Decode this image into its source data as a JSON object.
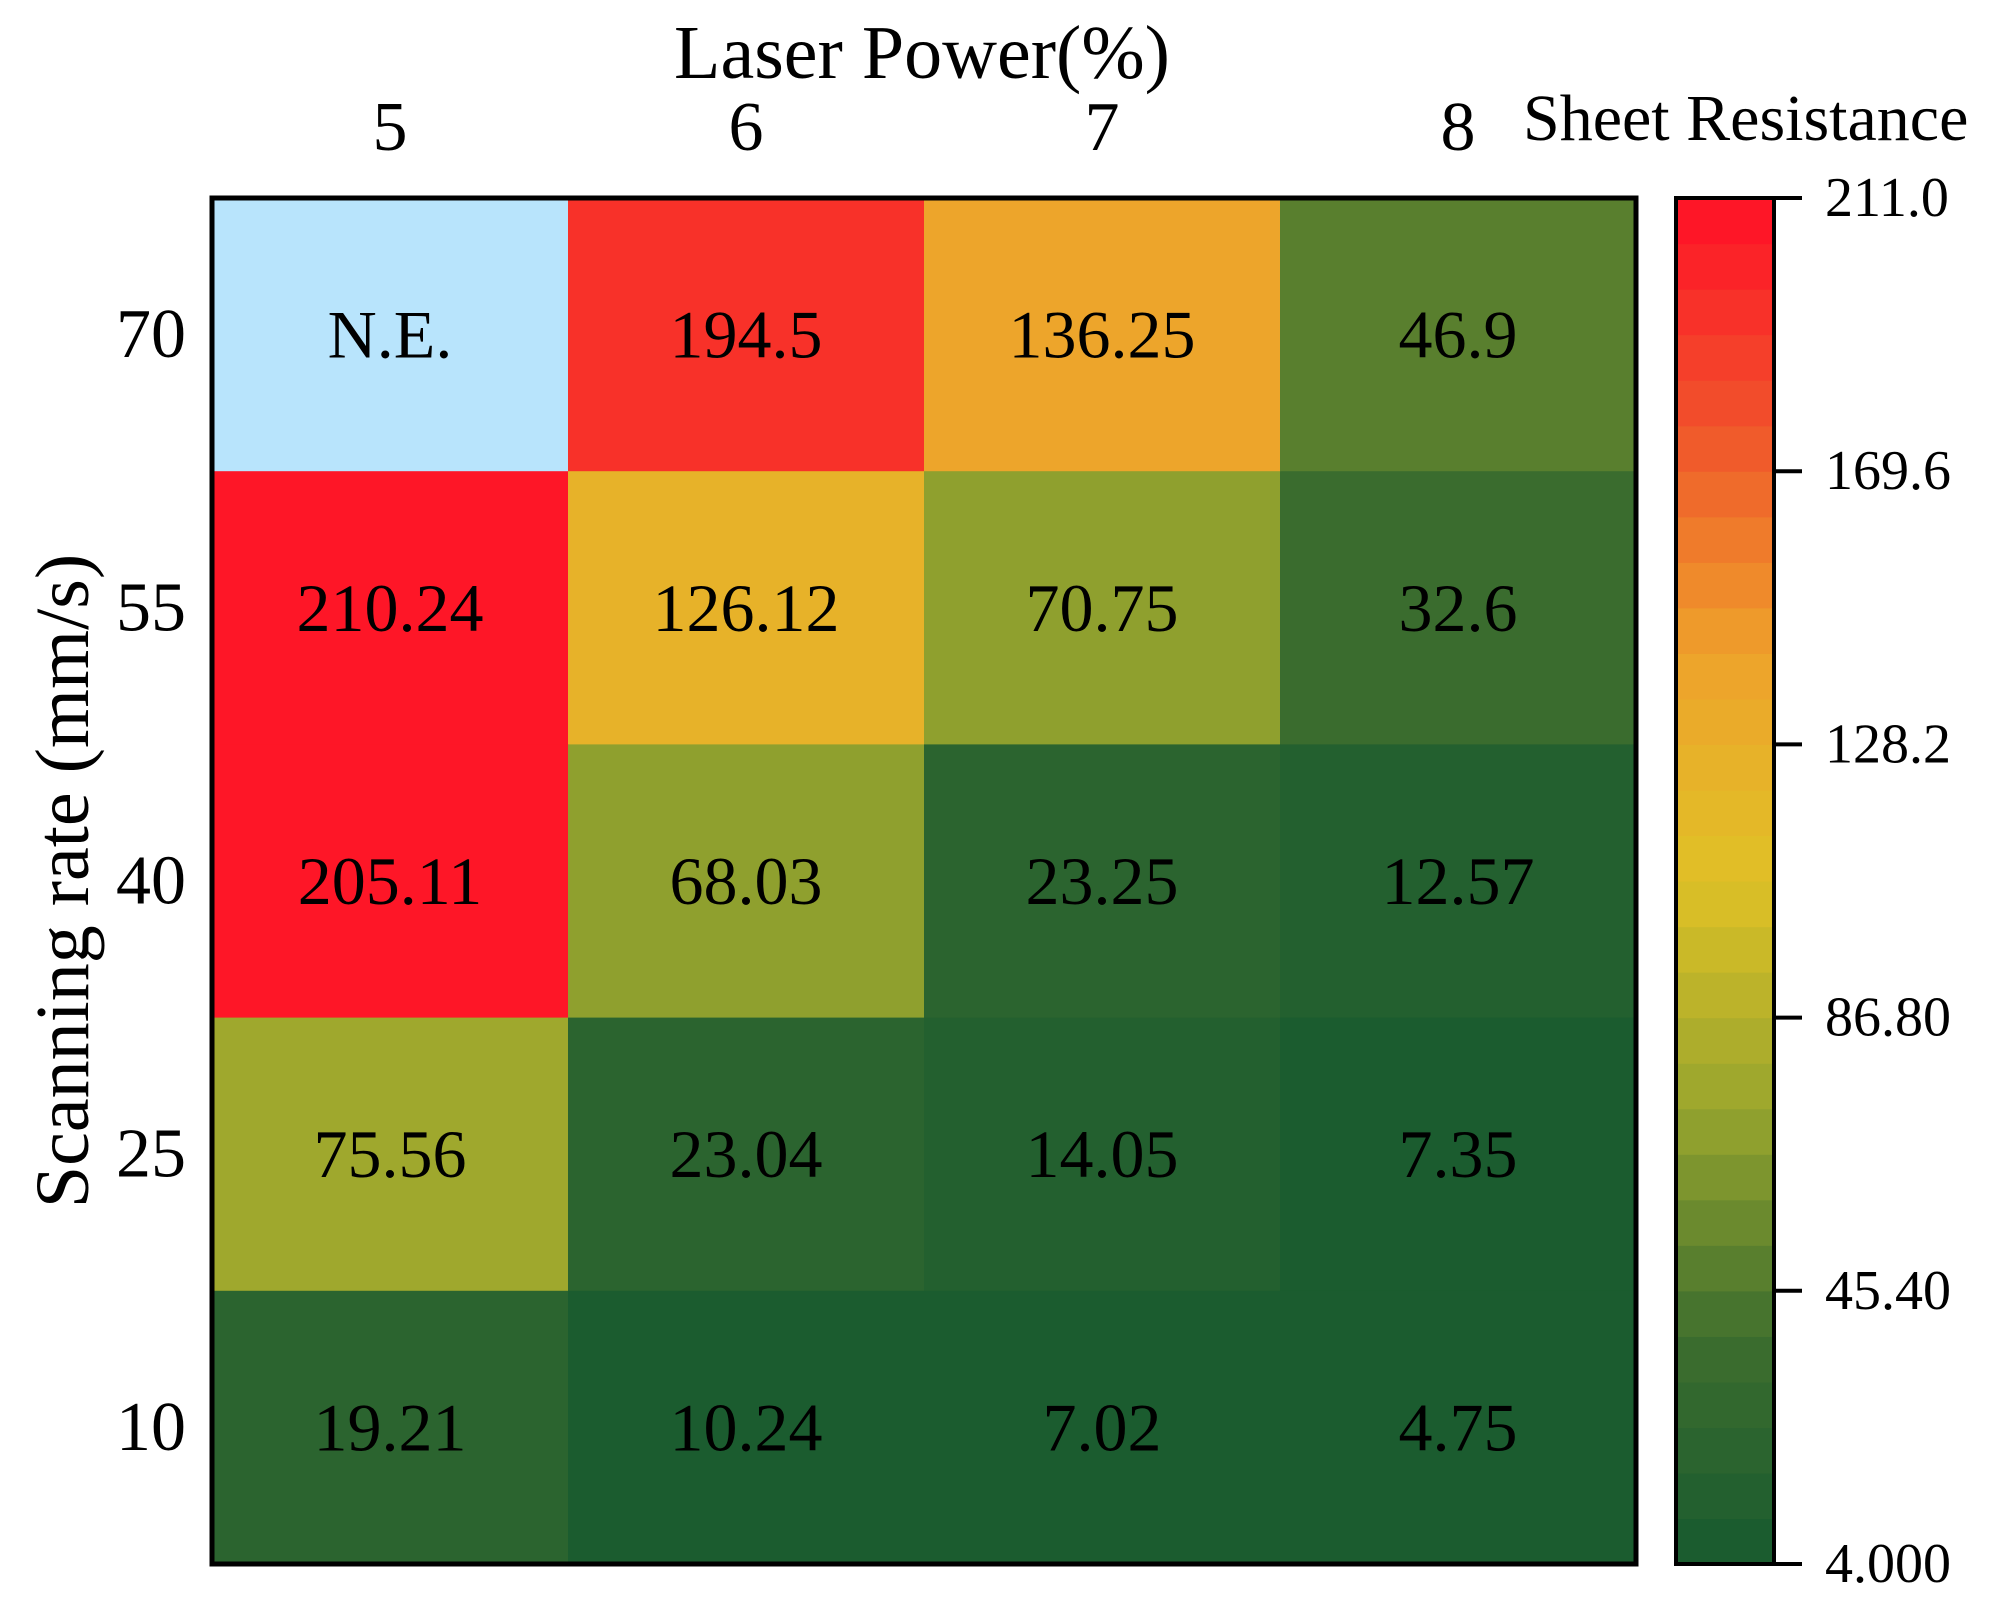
{
  "chart_data": {
    "type": "heatmap",
    "title": "Laser Power(%)",
    "xlabel": "Laser Power(%)",
    "ylabel": "Scanning rate (mm/s)",
    "x_categories": [
      "5",
      "6",
      "7",
      "8"
    ],
    "y_categories": [
      "70",
      "55",
      "40",
      "25",
      "10"
    ],
    "cells": [
      [
        "N.E.",
        "194.5",
        "136.25",
        "46.9"
      ],
      [
        "210.24",
        "126.12",
        "70.75",
        "32.6"
      ],
      [
        "205.11",
        "68.03",
        "23.25",
        "12.57"
      ],
      [
        "75.56",
        "23.04",
        "14.05",
        "7.35"
      ],
      [
        "19.21",
        "10.24",
        "7.02",
        "4.75"
      ]
    ],
    "colorbar": {
      "label": "Sheet Resistance",
      "min": 4.0,
      "max": 211.0,
      "ticks": [
        "211.0",
        "169.6",
        "128.2",
        "86.80",
        "45.40",
        "4.000"
      ],
      "tick_values": [
        211.0,
        169.6,
        128.2,
        86.8,
        45.4,
        4.0
      ],
      "stops": [
        "#175a2f",
        "#3e6e2e",
        "#98a52e",
        "#dfc126",
        "#eea22b",
        "#f0532b",
        "#ff0f26"
      ],
      "steps": 30
    },
    "na_color": "#b8e4fc"
  }
}
